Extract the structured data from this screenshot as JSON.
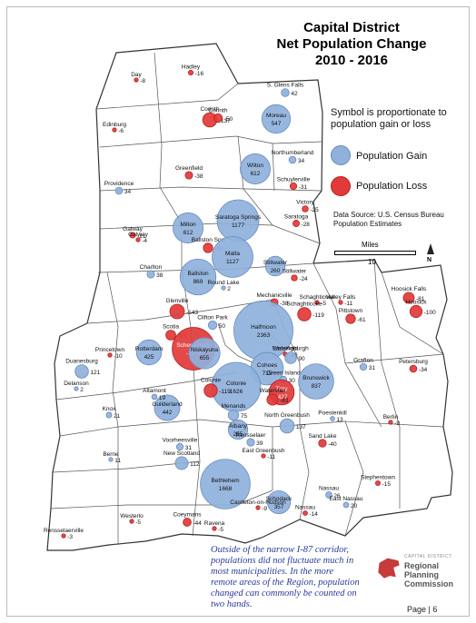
{
  "title_lines": [
    "Capital District",
    "Net Population Change",
    "2010 - 2016"
  ],
  "legend": {
    "heading": "Symbol is proportionate to population gain or loss",
    "gain_label": "Population Gain",
    "loss_label": "Population Loss",
    "source": "Data Source: U.S. Census Bureau Population Estimates",
    "gain_color": "#8fb1dc",
    "loss_color": "#e23a3a"
  },
  "scale_bar": {
    "unit": "Miles",
    "value": "10"
  },
  "north_label": "N",
  "note": "Outside of the narrow I-87 corridor, populations did not fluctuate much in most municipalities. In the more remote areas of the Region, population changed can commonly be counted on two hands.",
  "logo": {
    "small": "CAPITAL DISTRICT",
    "line1": "Regional",
    "line2": "Planning",
    "line3": "Commission"
  },
  "footer": "Page | 6",
  "municipalities": [
    {
      "name": "Day",
      "change": -8
    },
    {
      "name": "Hadley",
      "change": -16
    },
    {
      "name": "S. Glens Falls",
      "change": 42
    },
    {
      "name": "Edinburg",
      "change": -6
    },
    {
      "name": "Corinth",
      "change": -137
    },
    {
      "name": "Corinth",
      "change": -50
    },
    {
      "name": "Moreau",
      "change": 547
    },
    {
      "name": "Northumberland",
      "change": 34
    },
    {
      "name": "Providence",
      "change": 34
    },
    {
      "name": "Greenfield",
      "change": -38
    },
    {
      "name": "Wilton",
      "change": 612
    },
    {
      "name": "Schuylerville",
      "change": -31
    },
    {
      "name": "Victory",
      "change": -25
    },
    {
      "name": "Saratoga Springs",
      "change": 1177
    },
    {
      "name": "Saratoga",
      "change": -28
    },
    {
      "name": "Galway",
      "change": -21
    },
    {
      "name": "Galway",
      "change": -4
    },
    {
      "name": "Milton",
      "change": 612
    },
    {
      "name": "Ballston Spa",
      "change": -60
    },
    {
      "name": "Malta",
      "change": 1127
    },
    {
      "name": "Stillwater",
      "change": 260
    },
    {
      "name": "Stillwater",
      "change": -24
    },
    {
      "name": "Charlton",
      "change": 38
    },
    {
      "name": "Ballston",
      "change": 869
    },
    {
      "name": "Round Lake",
      "change": 2
    },
    {
      "name": "Mechanicville",
      "change": -38
    },
    {
      "name": "Schaghticoke",
      "change": -5
    },
    {
      "name": "Valley Falls",
      "change": -11
    },
    {
      "name": "Hoosick Falls",
      "change": -81
    },
    {
      "name": "Hoosick",
      "change": -100
    },
    {
      "name": "Glenville",
      "change": -143
    },
    {
      "name": "Clifton Park",
      "change": 50
    },
    {
      "name": "Halfmoon",
      "change": 2363
    },
    {
      "name": "Schaghticoke",
      "change": -119
    },
    {
      "name": "Pittstown",
      "change": -61
    },
    {
      "name": "Rotterdam",
      "change": 425
    },
    {
      "name": "Scotia",
      "change": -65
    },
    {
      "name": "Schenectady",
      "change": -1222
    },
    {
      "name": "Niskayuna",
      "change": 655
    },
    {
      "name": "Duanesburg",
      "change": 121
    },
    {
      "name": "Princetown",
      "change": -10
    },
    {
      "name": "Delanson",
      "change": 2
    },
    {
      "name": "Waterford",
      "change": -12
    },
    {
      "name": "Lansingburgh",
      "change": 90
    },
    {
      "name": "Cohoes",
      "change": 715
    },
    {
      "name": "Green Island",
      "change": 30
    },
    {
      "name": "Brunswick",
      "change": 837
    },
    {
      "name": "Grafton",
      "change": 31
    },
    {
      "name": "Petersburg",
      "change": -34
    },
    {
      "name": "Colonie",
      "change": 1626
    },
    {
      "name": "Colonie",
      "change": -119
    },
    {
      "name": "Troy",
      "change": -427
    },
    {
      "name": "Watervliet",
      "change": -83
    },
    {
      "name": "Guilderland",
      "change": 442
    },
    {
      "name": "Altamont",
      "change": 19
    },
    {
      "name": "Menands",
      "change": 75
    },
    {
      "name": "Albany",
      "change": 255
    },
    {
      "name": "Knox",
      "change": 21
    },
    {
      "name": "North Greenbush",
      "change": 137
    },
    {
      "name": "Poestenkill",
      "change": 13
    },
    {
      "name": "Berlin",
      "change": -9
    },
    {
      "name": "Voorheesville",
      "change": 31
    },
    {
      "name": "Rensselaer",
      "change": 39
    },
    {
      "name": "East Greenbush",
      "change": -11
    },
    {
      "name": "Sand Lake",
      "change": -40
    },
    {
      "name": "Berne",
      "change": 11
    },
    {
      "name": "New Scotland",
      "change": 112
    },
    {
      "name": "Bethlehem",
      "change": 1668
    },
    {
      "name": "Stephentown",
      "change": -15
    },
    {
      "name": "Schodack",
      "change": 357
    },
    {
      "name": "Nassau",
      "change": 26
    },
    {
      "name": "East Nassau",
      "change": 20
    },
    {
      "name": "Nassau",
      "change": -14
    },
    {
      "name": "Castleton-on-Hudson",
      "change": -9
    },
    {
      "name": "Rensselaerville",
      "change": -3
    },
    {
      "name": "Westerlo",
      "change": -5
    },
    {
      "name": "Coeymans",
      "change": -44
    },
    {
      "name": "Ravena",
      "change": -5
    }
  ]
}
